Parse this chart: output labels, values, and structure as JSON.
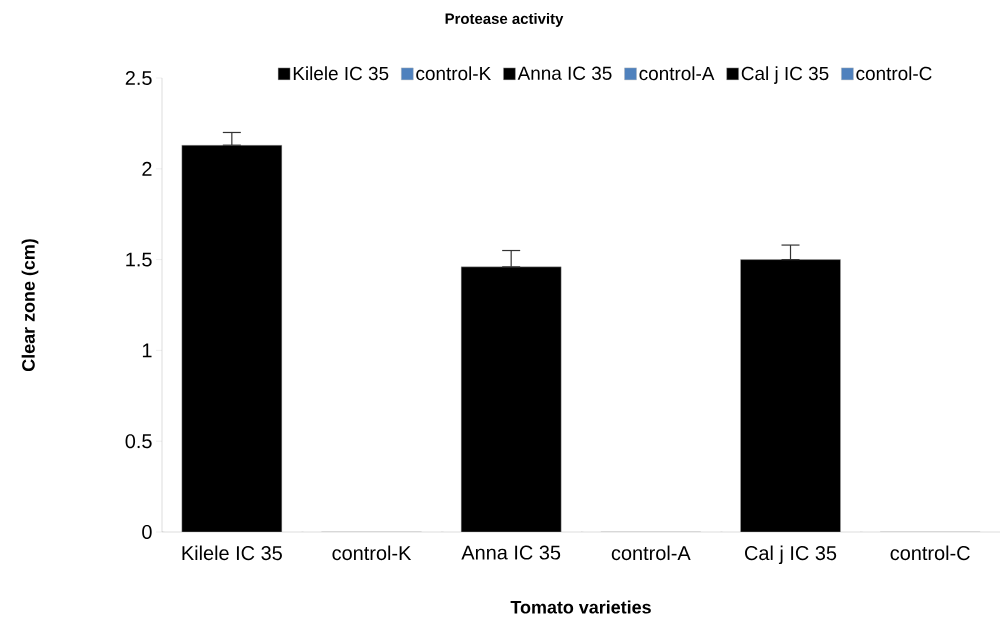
{
  "chart_data": {
    "type": "bar",
    "title": "Protease activity",
    "xlabel": "Tomato varieties",
    "ylabel": "Clear zone (cm)",
    "categories": [
      "Kilele IC 35",
      "control-K",
      "Anna IC 35",
      "control-A",
      "Cal j IC 35",
      "control-C"
    ],
    "series": [
      {
        "name": "Kilele IC 35",
        "color": "#000000",
        "values": [
          2.13,
          null,
          null,
          null,
          null,
          null
        ],
        "errors": [
          [
            2.13,
            2.2
          ],
          null,
          null,
          null,
          null,
          null
        ]
      },
      {
        "name": "control-K",
        "color": "#4f81bd",
        "values": [
          null,
          0,
          null,
          null,
          null,
          null
        ]
      },
      {
        "name": "Anna IC 35",
        "color": "#000000",
        "values": [
          null,
          null,
          1.46,
          null,
          null,
          null
        ],
        "errors": [
          null,
          null,
          [
            1.46,
            1.55
          ],
          null,
          null,
          null
        ]
      },
      {
        "name": "control-A",
        "color": "#4f81bd",
        "values": [
          null,
          null,
          null,
          0,
          null,
          null
        ]
      },
      {
        "name": "Cal j IC 35",
        "color": "#000000",
        "values": [
          null,
          null,
          null,
          null,
          1.5,
          null
        ],
        "errors": [
          null,
          null,
          null,
          null,
          [
            1.5,
            1.58
          ],
          null
        ]
      },
      {
        "name": "control-C",
        "color": "#4f81bd",
        "values": [
          null,
          null,
          null,
          null,
          null,
          0
        ]
      }
    ],
    "ylim": [
      0,
      2.5
    ],
    "yticks": [
      0,
      0.5,
      1,
      1.5,
      2,
      2.5
    ],
    "grid": false,
    "legend": "top"
  }
}
